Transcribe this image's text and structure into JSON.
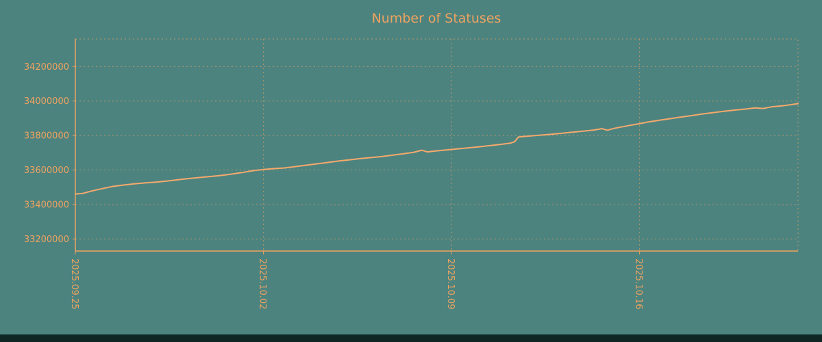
{
  "chart_data": {
    "type": "line",
    "title": "Number of Statuses",
    "xlabel": "",
    "ylabel": "",
    "grid": true,
    "legend": "none",
    "x_tick_offsets": [
      0,
      7,
      14,
      21
    ],
    "x_tick_labels": [
      "2025.09.25",
      "2025.10.02",
      "2025.10.09",
      "2025.10.16"
    ],
    "y_ticks": [
      33200000,
      33400000,
      33600000,
      33800000,
      34000000,
      34200000
    ],
    "xlim": [
      0,
      26.9
    ],
    "ylim": [
      33130000,
      34360000
    ],
    "series": [
      {
        "name": "statuses",
        "points": [
          [
            0.0,
            33460000
          ],
          [
            0.3,
            33465000
          ],
          [
            0.6,
            33478000
          ],
          [
            1.0,
            33492000
          ],
          [
            1.4,
            33505000
          ],
          [
            1.8,
            33513000
          ],
          [
            2.2,
            33520000
          ],
          [
            2.6,
            33525000
          ],
          [
            3.0,
            33530000
          ],
          [
            3.4,
            33536000
          ],
          [
            3.8,
            33543000
          ],
          [
            4.2,
            33550000
          ],
          [
            4.6,
            33556000
          ],
          [
            5.0,
            33562000
          ],
          [
            5.4,
            33568000
          ],
          [
            5.8,
            33576000
          ],
          [
            6.2,
            33585000
          ],
          [
            6.6,
            33596000
          ],
          [
            7.0,
            33603000
          ],
          [
            7.4,
            33608000
          ],
          [
            7.8,
            33612000
          ],
          [
            8.2,
            33620000
          ],
          [
            8.6,
            33628000
          ],
          [
            9.0,
            33636000
          ],
          [
            9.4,
            33644000
          ],
          [
            9.8,
            33652000
          ],
          [
            10.2,
            33659000
          ],
          [
            10.6,
            33666000
          ],
          [
            11.0,
            33672000
          ],
          [
            11.4,
            33678000
          ],
          [
            11.8,
            33686000
          ],
          [
            12.2,
            33694000
          ],
          [
            12.6,
            33703000
          ],
          [
            12.9,
            33715000
          ],
          [
            13.1,
            33705000
          ],
          [
            13.4,
            33710000
          ],
          [
            13.8,
            33716000
          ],
          [
            14.2,
            33722000
          ],
          [
            14.6,
            33728000
          ],
          [
            15.0,
            33734000
          ],
          [
            15.4,
            33741000
          ],
          [
            15.8,
            33748000
          ],
          [
            16.2,
            33756000
          ],
          [
            16.35,
            33764000
          ],
          [
            16.5,
            33792000
          ],
          [
            16.9,
            33797000
          ],
          [
            17.3,
            33802000
          ],
          [
            17.7,
            33807000
          ],
          [
            18.1,
            33813000
          ],
          [
            18.5,
            33819000
          ],
          [
            18.9,
            33825000
          ],
          [
            19.3,
            33832000
          ],
          [
            19.6,
            33840000
          ],
          [
            19.8,
            33831000
          ],
          [
            20.1,
            33843000
          ],
          [
            20.5,
            33855000
          ],
          [
            20.9,
            33866000
          ],
          [
            21.3,
            33878000
          ],
          [
            21.7,
            33888000
          ],
          [
            22.1,
            33897000
          ],
          [
            22.5,
            33906000
          ],
          [
            22.9,
            33915000
          ],
          [
            23.3,
            33924000
          ],
          [
            23.7,
            33932000
          ],
          [
            24.1,
            33940000
          ],
          [
            24.5,
            33947000
          ],
          [
            24.9,
            33953000
          ],
          [
            25.3,
            33960000
          ],
          [
            25.6,
            33957000
          ],
          [
            25.9,
            33966000
          ],
          [
            26.3,
            33972000
          ],
          [
            26.6,
            33978000
          ],
          [
            26.9,
            33985000
          ]
        ]
      }
    ]
  },
  "style": {
    "background": "#4d837f",
    "text_color": "#f0a35f",
    "line_color": "#f6a96c",
    "grid_color": "#d9a064",
    "axis_color": "#f0a35f",
    "footer_color": "#102624"
  }
}
